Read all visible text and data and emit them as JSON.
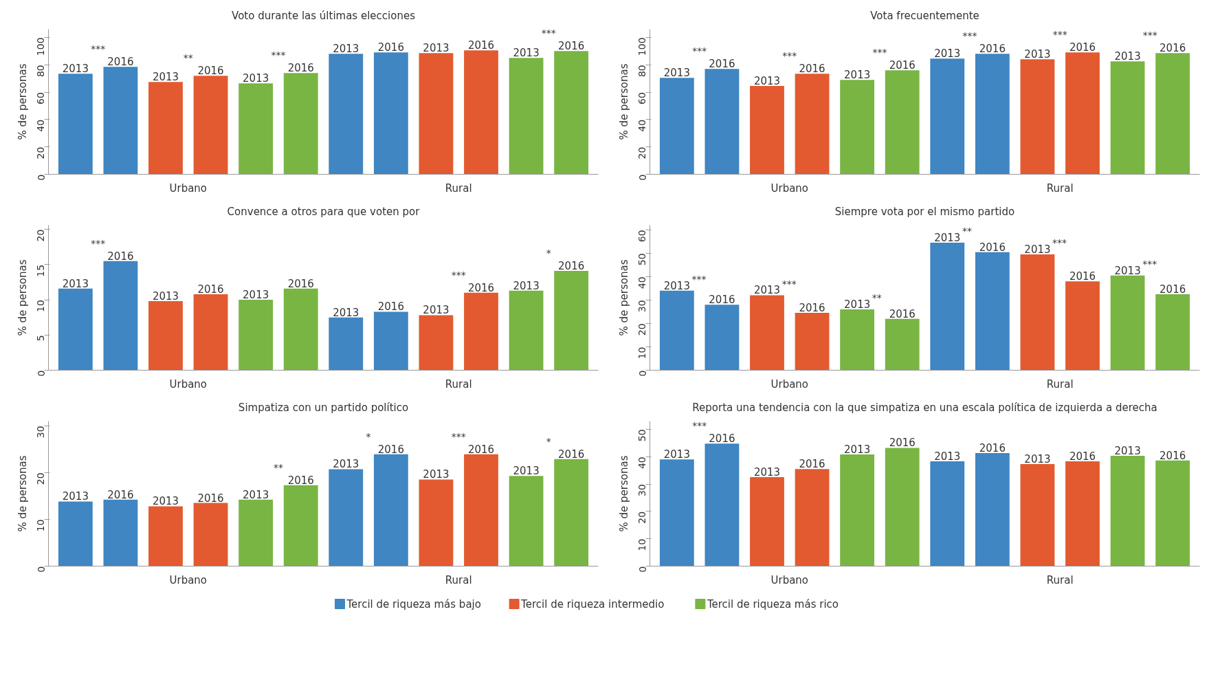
{
  "chart_data": [
    {
      "type": "bar",
      "title": "Voto durante las últimas elecciones",
      "ylabel": "% de personas",
      "categories": [
        "2013",
        "2016",
        "2013",
        "2016",
        "2013",
        "2016",
        "2013",
        "2016",
        "2013",
        "2016",
        "2013",
        "2016"
      ],
      "ylim": [
        0,
        106
      ],
      "yticks": [
        0,
        20,
        40,
        60,
        80,
        100
      ],
      "tick_labels": "y",
      "grid": false,
      "legend": "bottom",
      "series": [
        {
          "name": "Tercil de riqueza más bajo",
          "color": "#3f86c2",
          "values": [
            73.5,
            78.5,
            null,
            null,
            null,
            null,
            88,
            89,
            null,
            null,
            null,
            null
          ]
        },
        {
          "name": "Tercil de riqueza intermedio",
          "color": "#e35a30",
          "values": [
            null,
            null,
            67.5,
            72,
            null,
            null,
            null,
            null,
            88.5,
            90.5,
            null,
            null
          ]
        },
        {
          "name": "Tercil de riqueza más rico",
          "color": "#78b543",
          "values": [
            null,
            null,
            null,
            null,
            66.5,
            74,
            null,
            null,
            null,
            null,
            85,
            90
          ]
        }
      ],
      "annotations": [
        "Urbano",
        "Rural",
        "***",
        "**",
        "***",
        "***"
      ]
    },
    {
      "type": "bar",
      "title": "Vota frecuentemente",
      "ylabel": "% de personas",
      "categories": [
        "2013",
        "2016",
        "2013",
        "2016",
        "2013",
        "2016",
        "2013",
        "2016",
        "2013",
        "2016",
        "2013",
        "2016"
      ],
      "ylim": [
        0,
        106
      ],
      "yticks": [
        0,
        20,
        40,
        60,
        80,
        100
      ],
      "tick_labels": "y",
      "grid": false,
      "series": [
        {
          "color": "#3f86c2",
          "values": [
            70.5,
            77,
            null,
            null,
            null,
            null,
            84.5,
            88,
            null,
            null,
            null,
            null
          ]
        },
        {
          "color": "#e35a30",
          "values": [
            null,
            null,
            64.5,
            73.5,
            null,
            null,
            null,
            null,
            84,
            89,
            null,
            null
          ]
        },
        {
          "color": "#78b543",
          "values": [
            null,
            null,
            null,
            null,
            69,
            76,
            null,
            null,
            null,
            null,
            82.5,
            88.5
          ]
        }
      ],
      "annotations": [
        "Urbano",
        "Rural",
        "***",
        "***",
        "***",
        "***",
        "***",
        "***"
      ]
    },
    {
      "type": "bar",
      "title": "Convence a otros para que voten por",
      "ylabel": "% de personas",
      "categories": [
        "2013",
        "2016",
        "2013",
        "2016",
        "2013",
        "2016",
        "2013",
        "2016",
        "2013",
        "2016",
        "2013",
        "2016"
      ],
      "ylim": [
        0,
        20.6
      ],
      "yticks": [
        0,
        5,
        10,
        15,
        20
      ],
      "tick_labels": "y",
      "grid": false,
      "series": [
        {
          "color": "#3f86c2",
          "values": [
            11.6,
            15.5,
            null,
            null,
            null,
            null,
            7.5,
            8.3,
            null,
            null,
            null,
            null
          ]
        },
        {
          "color": "#e35a30",
          "values": [
            null,
            null,
            9.8,
            10.8,
            null,
            null,
            null,
            null,
            7.8,
            11,
            null,
            null
          ]
        },
        {
          "color": "#78b543",
          "values": [
            null,
            null,
            null,
            null,
            10,
            11.6,
            null,
            null,
            null,
            null,
            11.3,
            14.1
          ]
        }
      ],
      "annotations": [
        "Urbano",
        "Rural",
        "***",
        "***",
        "*"
      ]
    },
    {
      "type": "bar",
      "title": "Siempre vota por el mismo partido",
      "ylabel": "% de personas",
      "categories": [
        "2013",
        "2016",
        "2013",
        "2016",
        "2013",
        "2016",
        "2013",
        "2016",
        "2013",
        "2016",
        "2013",
        "2016"
      ],
      "ylim": [
        0,
        62
      ],
      "yticks": [
        0,
        10,
        20,
        30,
        40,
        50,
        60
      ],
      "tick_labels": "y",
      "grid": false,
      "series": [
        {
          "color": "#3f86c2",
          "values": [
            34,
            28,
            null,
            null,
            null,
            null,
            54.5,
            50.5,
            null,
            null,
            null,
            null
          ]
        },
        {
          "color": "#e35a30",
          "values": [
            null,
            null,
            32,
            24.5,
            null,
            null,
            null,
            null,
            49.5,
            38,
            null,
            null
          ]
        },
        {
          "color": "#78b543",
          "values": [
            null,
            null,
            null,
            null,
            26,
            22,
            null,
            null,
            null,
            null,
            40.5,
            32.5
          ]
        }
      ],
      "annotations": [
        "Urbano",
        "Rural",
        "***",
        "***",
        "**",
        "**",
        "***",
        "***"
      ]
    },
    {
      "type": "bar",
      "title": "Simpatiza con un partido político",
      "ylabel": "% de personas",
      "categories": [
        "2013",
        "2016",
        "2013",
        "2016",
        "2013",
        "2016",
        "2013",
        "2016",
        "2013",
        "2016",
        "2013",
        "2016"
      ],
      "ylim": [
        0,
        31
      ],
      "yticks": [
        0,
        10,
        20,
        30
      ],
      "tick_labels": "y",
      "grid": false,
      "series": [
        {
          "color": "#3f86c2",
          "values": [
            13.8,
            14.2,
            null,
            null,
            null,
            null,
            20.7,
            23.9,
            null,
            null,
            null,
            null
          ]
        },
        {
          "color": "#e35a30",
          "values": [
            null,
            null,
            12.8,
            13.5,
            null,
            null,
            null,
            null,
            18.5,
            23.9,
            null,
            null
          ]
        },
        {
          "color": "#78b543",
          "values": [
            null,
            null,
            null,
            null,
            14.2,
            17.3,
            null,
            null,
            null,
            null,
            19.3,
            22.9
          ]
        }
      ],
      "annotations": [
        "Urbano",
        "Rural",
        "**",
        "*",
        "***",
        "*"
      ]
    },
    {
      "type": "bar",
      "title": "Reporta una tendencia con la que simpatiza en una escala política de izquierda a derecha",
      "ylabel": "% de personas",
      "categories": [
        "2013",
        "2016",
        "2013",
        "2016",
        "2013",
        "2016",
        "2013",
        "2016",
        "2013",
        "2016",
        "2013",
        "2016"
      ],
      "ylim": [
        0,
        53
      ],
      "yticks": [
        0,
        10,
        20,
        30,
        40,
        50
      ],
      "tick_labels": "y",
      "grid": false,
      "series": [
        {
          "color": "#3f86c2",
          "values": [
            39,
            44.8,
            null,
            null,
            null,
            null,
            38.3,
            41.3,
            null,
            null,
            null,
            null
          ]
        },
        {
          "color": "#e35a30",
          "values": [
            null,
            null,
            32.5,
            35.5,
            null,
            null,
            null,
            null,
            37.3,
            38.3,
            null,
            null
          ]
        },
        {
          "color": "#78b543",
          "values": [
            null,
            null,
            null,
            null,
            40.8,
            43.2,
            null,
            null,
            null,
            null,
            40.3,
            38.6
          ]
        }
      ],
      "annotations": [
        "Urbano",
        "Rural",
        "***"
      ]
    }
  ]
}
